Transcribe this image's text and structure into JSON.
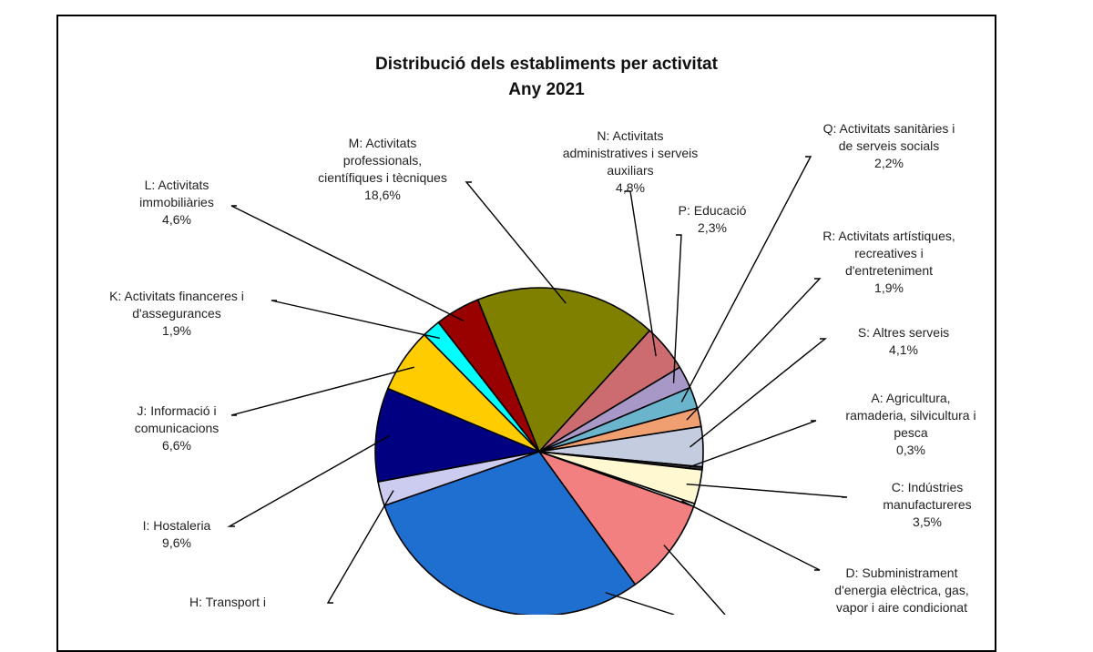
{
  "chart_data": {
    "type": "pie",
    "title": "Distribució dels establiments per activitat",
    "subtitle": "Any 2021",
    "slices": [
      {
        "key": "M",
        "label_lines": [
          "M: Activitats",
          "professionals,",
          "científiques i tècniques"
        ],
        "value": 18.6,
        "value_text": "18,6%",
        "color": "#808000"
      },
      {
        "key": "N",
        "label_lines": [
          "N: Activitats",
          "administratives i serveis",
          "auxiliars"
        ],
        "value": 4.8,
        "value_text": "4,8%",
        "color": "#cc6c70"
      },
      {
        "key": "P",
        "label_lines": [
          "P: Educació"
        ],
        "value": 2.3,
        "value_text": "2,3%",
        "color": "#a898c8"
      },
      {
        "key": "Q",
        "label_lines": [
          "Q: Activitats sanitàries i",
          "de serveis socials"
        ],
        "value": 2.2,
        "value_text": "2,2%",
        "color": "#6ab4cc"
      },
      {
        "key": "R",
        "label_lines": [
          "R: Activitats artístiques,",
          "recreatives i",
          "d'entreteniment"
        ],
        "value": 1.9,
        "value_text": "1,9%",
        "color": "#f0a070"
      },
      {
        "key": "S",
        "label_lines": [
          "S: Altres serveis"
        ],
        "value": 4.1,
        "value_text": "4,1%",
        "color": "#c4cce0"
      },
      {
        "key": "A",
        "label_lines": [
          "A: Agricultura,",
          "ramaderia, silvicultura i",
          "pesca"
        ],
        "value": 0.3,
        "value_text": "0,3%",
        "color": "#333333"
      },
      {
        "key": "C",
        "label_lines": [
          "C: Indústries",
          "manufactureres"
        ],
        "value": 3.5,
        "value_text": "3,5%",
        "color": "#fff8d0"
      },
      {
        "key": "D",
        "label_lines": [
          "D: Subministrament",
          "d'energia elèctrica, gas,",
          "vapor i aire condicionat"
        ],
        "value": 0.3,
        "value_text": "",
        "color": "#e0e0e0"
      },
      {
        "key": "F",
        "label_lines": [],
        "value": 10.0,
        "value_text": "",
        "color": "#f28080"
      },
      {
        "key": "G",
        "label_lines": [],
        "value": 30.8,
        "value_text": "",
        "color": "#1f6fd0"
      },
      {
        "key": "H",
        "label_lines": [
          "H: Transport i"
        ],
        "value": 2.5,
        "value_text": "",
        "color": "#ccccf0"
      },
      {
        "key": "I",
        "label_lines": [
          "I: Hostaleria"
        ],
        "value": 9.6,
        "value_text": "9,6%",
        "color": "#000080"
      },
      {
        "key": "J",
        "label_lines": [
          "J: Informació i",
          "comunicacions"
        ],
        "value": 6.6,
        "value_text": "6,6%",
        "color": "#ffcc00"
      },
      {
        "key": "K",
        "label_lines": [
          "K: Activitats financeres i",
          "d'assegurances"
        ],
        "value": 1.9,
        "value_text": "1,9%",
        "color": "#00ffff"
      },
      {
        "key": "L",
        "label_lines": [
          "L: Activitats",
          "immobiliàries"
        ],
        "value": 4.6,
        "value_text": "4,6%",
        "color": "#990000"
      }
    ]
  }
}
